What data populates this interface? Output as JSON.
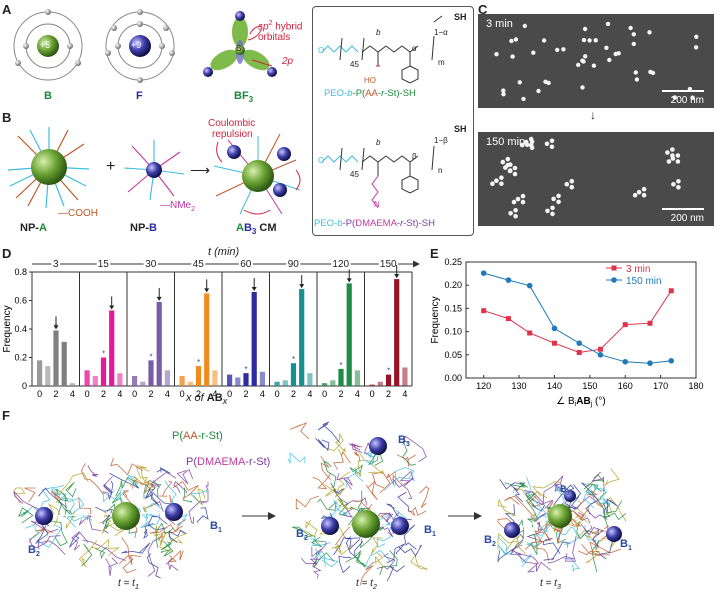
{
  "panels": {
    "A": "A",
    "B": "B",
    "C": "C",
    "D": "D",
    "E": "E",
    "F": "F"
  },
  "panelA": {
    "atom_b_label": "B",
    "atom_b_core": "+5",
    "atom_f_label": "F",
    "atom_f_core": "+9",
    "bf3_label": "BF",
    "bf3_sub": "3",
    "bf3_center": "B",
    "sp2_note_line1": "sp",
    "sp2_sup": "2",
    "sp2_note_rest": "hybrid",
    "sp2_note_line2": "orbitals",
    "p_label": "2p"
  },
  "panelB": {
    "np_a_label": "NP-",
    "np_a_letter": "A",
    "np_b_label": "NP-",
    "np_b_letter": "B",
    "ab3_label_a": "A",
    "ab3_label_b": "B",
    "ab3_sub": "3",
    "ab3_suffix": " CM",
    "cooh": "—COOH",
    "nme2": "—NMe",
    "nme2_sub": "2",
    "coulombic": "Coulombic",
    "repulsion": "repulsion",
    "plus": "+"
  },
  "polymers": {
    "top": {
      "name_pre": "PEO-",
      "name_b": "b",
      "name_mid": "-P(",
      "name_aa": "AA",
      "name_dash": "-",
      "name_r": "r",
      "name_st": "-St)",
      "name_end": "-SH",
      "sh": "SH",
      "n45": "45",
      "m": "m",
      "alpha": "α",
      "one_minus_alpha": "1−α",
      "b_letter": "b",
      "ho": "HO",
      "o": "O"
    },
    "bottom": {
      "name_pre": "PEO-",
      "name_b": "b",
      "name_mid": "-P(",
      "name_dm": "DMAEMA",
      "name_dash": "-",
      "name_r": "r",
      "name_st": "-St)",
      "name_end": "-SH",
      "sh": "SH",
      "n45": "45",
      "n": "n",
      "beta": "β",
      "one_minus_beta": "1−β",
      "b_letter": "b",
      "o": "O",
      "nme": "N"
    }
  },
  "panelC": {
    "top_time": "3 min",
    "bottom_time": "150 min",
    "scale_top": "200 nm",
    "scale_bottom": "200 nm"
  },
  "panelD": {
    "title": "t (min)",
    "ylabel": "Frequency",
    "xlabel_pre": "x of ",
    "xlabel_ab": "AB",
    "xlabel_sub": "x",
    "x_ticks": [
      "0",
      "2",
      "4"
    ]
  },
  "panelE": {
    "ylabel": "Frequency",
    "xlabel": "∠ B",
    "xlabel_i": "i",
    "xlabel_ab": "AB",
    "xlabel_j": "j",
    "xlabel_deg": " (°)"
  },
  "panelF": {
    "aa_label_pre": "P(",
    "aa_label_aa": "AA",
    "aa_label_rest": "-r-St)",
    "dm_label_pre": "P(",
    "dm_label_dm": "DMAEMA",
    "dm_label_rest": "-r-St)",
    "b1": "B",
    "b1s": "1",
    "b2": "B",
    "b2s": "2",
    "b3": "B",
    "b3s": "3",
    "t1": "t = t",
    "t1s": "1",
    "t2": "t = t",
    "t2s": "2",
    "t3": "t = t",
    "t3s": "3"
  },
  "chart_data": [
    {
      "id": "D",
      "type": "bar",
      "title": "t (min)",
      "xlabel": "x of ABx",
      "ylabel": "Frequency",
      "ylim": [
        0,
        0.8
      ],
      "yticks": [
        0,
        0.2,
        0.4,
        0.6,
        0.8
      ],
      "time_points": [
        "3",
        "15",
        "30",
        "45",
        "60",
        "90",
        "120",
        "150"
      ],
      "categories": [
        "0",
        "1",
        "2",
        "3",
        "4"
      ],
      "colors": [
        "#808080",
        "#e6199a",
        "#7a5ba6",
        "#f08c1e",
        "#2c2ca0",
        "#189090",
        "#1e8c46",
        "#961428"
      ],
      "series": [
        {
          "name": "3",
          "values": [
            0.18,
            0.14,
            0.39,
            0.31,
            0.02
          ]
        },
        {
          "name": "15",
          "values": [
            0.11,
            0.07,
            0.2,
            0.53,
            0.09
          ]
        },
        {
          "name": "30",
          "values": [
            0.07,
            0.03,
            0.18,
            0.59,
            0.11
          ]
        },
        {
          "name": "45",
          "values": [
            0.07,
            0.03,
            0.14,
            0.65,
            0.11
          ]
        },
        {
          "name": "60",
          "values": [
            0.08,
            0.06,
            0.09,
            0.66,
            0.1
          ]
        },
        {
          "name": "90",
          "values": [
            0.03,
            0.04,
            0.16,
            0.68,
            0.09
          ]
        },
        {
          "name": "120",
          "values": [
            0.02,
            0.04,
            0.12,
            0.72,
            0.11
          ]
        },
        {
          "name": "150",
          "values": [
            0.01,
            0.03,
            0.08,
            0.75,
            0.13
          ]
        }
      ]
    },
    {
      "id": "E",
      "type": "line",
      "xlabel": "∠ BiABj (°)",
      "ylabel": "Frequency",
      "xlim": [
        115,
        180
      ],
      "ylim": [
        0,
        0.25
      ],
      "xticks": [
        120,
        130,
        140,
        150,
        160,
        170,
        180
      ],
      "yticks": [
        0,
        0.05,
        0.1,
        0.15,
        0.2,
        0.25
      ],
      "ytick_labels": [
        "0.00",
        "0.05",
        "0.10",
        "0.15",
        "0.20",
        "0.25"
      ],
      "legend": "top-right",
      "series": [
        {
          "name": "3 min",
          "color": "#e0334a",
          "marker": "square",
          "x": [
            120,
            127,
            133,
            140,
            147,
            153,
            160,
            167,
            173
          ],
          "y": [
            0.145,
            0.128,
            0.097,
            0.075,
            0.055,
            0.062,
            0.115,
            0.118,
            0.188
          ]
        },
        {
          "name": "150 min",
          "color": "#1f7ab8",
          "marker": "circle",
          "x": [
            120,
            127,
            133,
            140,
            147,
            153,
            160,
            167,
            173
          ],
          "y": [
            0.226,
            0.211,
            0.199,
            0.107,
            0.075,
            0.05,
            0.035,
            0.032,
            0.037
          ]
        }
      ]
    }
  ]
}
